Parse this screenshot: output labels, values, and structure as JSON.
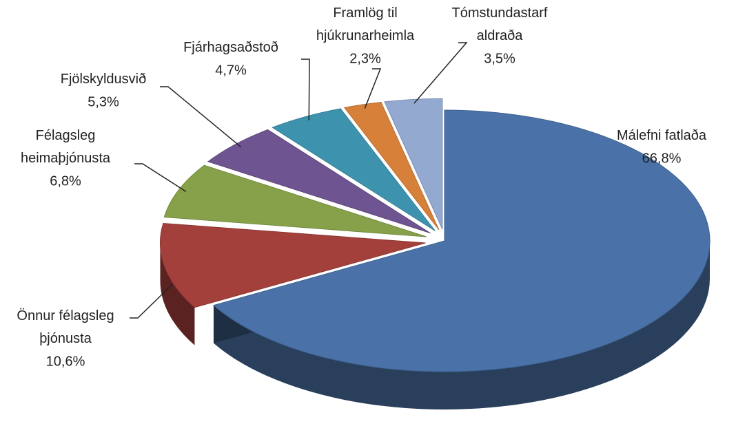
{
  "chart_data": {
    "type": "pie3d",
    "categories": [
      "Málefni fatlaða",
      "Önnur félagsleg þjónusta",
      "Félagsleg heimaþjónusta",
      "Fjölskyldusvið",
      "Fjárhagsaðstoð",
      "Framlög til hjúkrunarheimla",
      "Tómstundastarf aldraða"
    ],
    "values": [
      66.8,
      10.6,
      6.8,
      5.3,
      4.7,
      2.3,
      3.5
    ],
    "value_labels": [
      "66,8%",
      "10,6%",
      "6,8%",
      "5,3%",
      "4,7%",
      "2,3%",
      "3,5%"
    ],
    "colors": [
      "#4a72a8",
      "#a4403c",
      "#87a14a",
      "#6e5490",
      "#3d93ad",
      "#d6803a",
      "#93a9d0"
    ]
  }
}
